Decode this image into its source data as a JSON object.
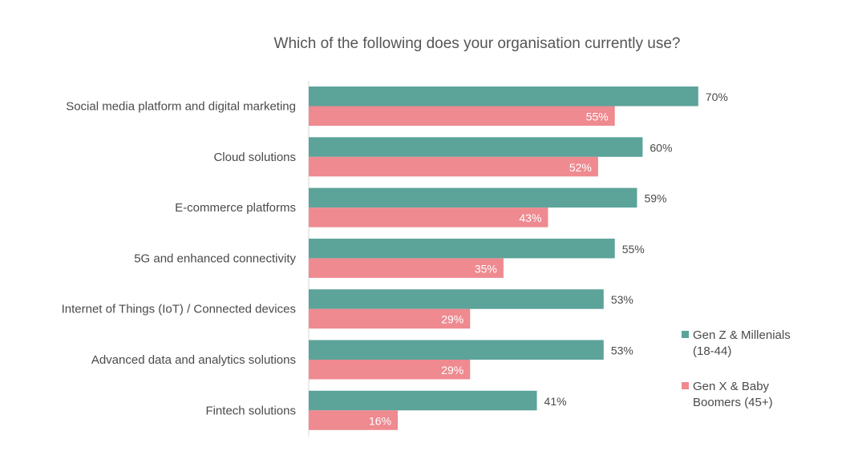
{
  "chart_data": {
    "type": "bar",
    "orientation": "horizontal",
    "title": "Which of the following does your organisation currently use?",
    "categories": [
      "Social media platform and digital marketing",
      "Cloud solutions",
      "E-commerce platforms",
      "5G and enhanced connectivity",
      "Internet of Things (IoT) / Connected devices",
      "Advanced data and analytics solutions",
      "Fintech solutions"
    ],
    "series": [
      {
        "name": "Gen Z & Millenials (18-44)",
        "legend_lines": [
          "Gen Z & Millenials",
          "(18-44)"
        ],
        "color": "#5ca39a",
        "values": [
          70,
          60,
          59,
          55,
          53,
          53,
          41
        ],
        "labels": [
          "70%",
          "60%",
          "59%",
          "55%",
          "53%",
          "53%",
          "41%"
        ]
      },
      {
        "name": "Gen X & Baby Boomers (45+)",
        "legend_lines": [
          "Gen X & Baby",
          "Boomers (45+)"
        ],
        "color": "#ee8a90",
        "values": [
          55,
          52,
          43,
          35,
          29,
          29,
          16
        ],
        "labels": [
          "55%",
          "52%",
          "43%",
          "35%",
          "29%",
          "29%",
          "16%"
        ]
      }
    ],
    "xlim": [
      0,
      100
    ],
    "value_suffix": "%",
    "grid": false,
    "legend_position": "right",
    "axis_color": "#d9d9d9"
  }
}
